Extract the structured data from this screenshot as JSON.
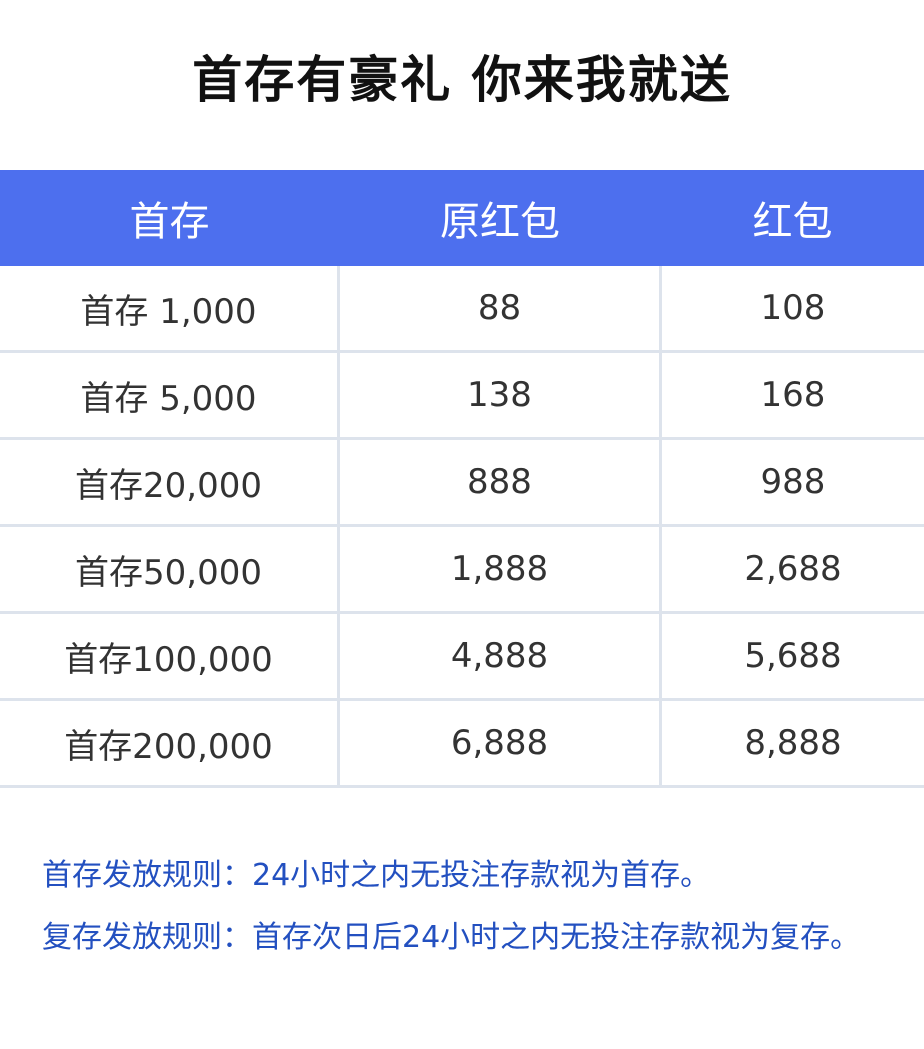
{
  "title": "首存有豪礼 你来我就送",
  "colors": {
    "header_bg": "#4d6fee",
    "rules_text": "#2350c0"
  },
  "table": {
    "headers": [
      "首存",
      "原红包",
      "红包"
    ],
    "rows": [
      [
        "首存 1,000",
        "88",
        "108"
      ],
      [
        "首存 5,000",
        "138",
        "168"
      ],
      [
        "首存20,000",
        "888",
        "988"
      ],
      [
        "首存50,000",
        "1,888",
        "2,688"
      ],
      [
        "首存100,000",
        "4,888",
        "5,688"
      ],
      [
        "首存200,000",
        "6,888",
        "8,888"
      ]
    ]
  },
  "rules": [
    "首存发放规则：24小时之内无投注存款视为首存。",
    "复存发放规则：首存次日后24小时之内无投注存款视为复存。"
  ]
}
